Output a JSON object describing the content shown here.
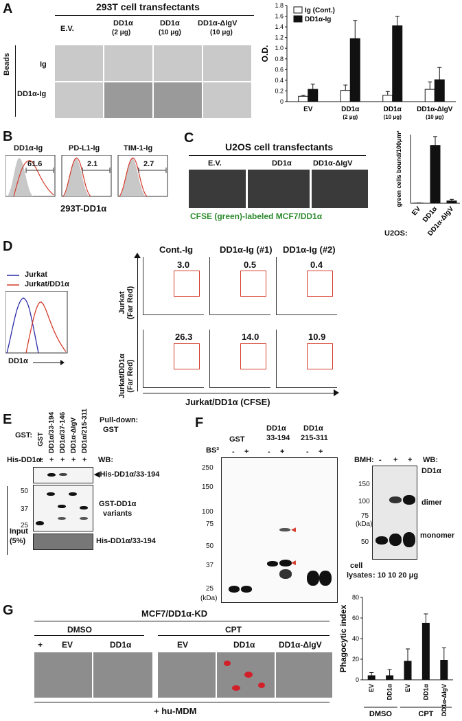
{
  "panelA": {
    "letter": "A",
    "title": "293T cell transfectants",
    "cols": [
      "E.V.",
      "DD1α",
      "DD1α",
      "DD1α-ΔIgV"
    ],
    "cols_sub": [
      "",
      "(2 μg)",
      "(10 μg)",
      "(10 μg)"
    ],
    "rows_group": "Beads",
    "rows": [
      "Ig",
      "DD1α-Ig"
    ]
  },
  "panelB": {
    "letter": "B",
    "plots": [
      {
        "title": "DD1α-Ig",
        "value": "61.6"
      },
      {
        "title": "PD-L1-Ig",
        "value": "2.1"
      },
      {
        "title": "TIM-1-Ig",
        "value": "2.7"
      }
    ],
    "xlabel": "293T-DD1α"
  },
  "panelC": {
    "letter": "C",
    "title": "U2OS cell transfectants",
    "cols": [
      "E.V.",
      "DD1α",
      "DD1α-ΔIgV"
    ],
    "caption": "CFSE (green)-labeled MCF7/DD1α",
    "row_label": "U2OS:"
  },
  "panelD": {
    "letter": "D",
    "legend": [
      "Jurkat",
      "Jurkat/DD1α"
    ],
    "hist_xlabel": "DD1α",
    "cols": [
      "Cont.-Ig",
      "DD1α-Ig (#1)",
      "DD1α-Ig (#2)"
    ],
    "row1_label": [
      "Jurkat",
      "(Far Red)"
    ],
    "row2_label": [
      "Jurkat/DD1α",
      "(Far Red)"
    ],
    "row1_values": [
      "3.0",
      "0.5",
      "0.4"
    ],
    "row2_values": [
      "26.3",
      "14.0",
      "10.9"
    ],
    "xlabel": "Jurkat/DD1α (CFSE)"
  },
  "panelE": {
    "letter": "E",
    "gst_label": "GST:",
    "lanes": [
      "GST",
      "DD1α/33-194",
      "DD1α/37-146",
      "DD1α-ΔIgV",
      "DD1α/215-311"
    ],
    "his_label": "His-DD1α:",
    "his_signs": [
      "+",
      "+",
      "+",
      "+",
      "+"
    ],
    "pulldown": [
      "Pull-down:",
      "GST"
    ],
    "wb": "WB:",
    "band_label": "◀His-DD1α/33-194",
    "input_label": [
      "Input",
      "(5%)"
    ],
    "mw": [
      "50",
      "37",
      "25"
    ],
    "variants_label": [
      "GST-DD1α",
      "variants"
    ],
    "bottom_label": "His-DD1α/33-194"
  },
  "panelF": {
    "letter": "F",
    "groups": [
      "GST",
      "DD1α",
      "DD1α"
    ],
    "groups_sub": [
      "",
      "33-194",
      "215-311"
    ],
    "bs3": "BS³",
    "signs": [
      "-",
      "+",
      "-",
      "+",
      "-",
      "+"
    ],
    "mw": [
      "250",
      "150",
      "100",
      "75",
      "50",
      "37",
      "25"
    ],
    "kda": "(kDa)",
    "bmh": "BMH:",
    "bmh_signs": [
      "-",
      "+",
      "+"
    ],
    "wb": "WB:",
    "wb_target": "DD1α",
    "mw2": [
      "150",
      "100",
      "75",
      "50"
    ],
    "kda2": "(kDa)",
    "dimer": "dimer",
    "monomer": "monomer",
    "cell_lysates": [
      "cell",
      "lysates"
    ],
    "lysate_amounts": ": 10   10   20 μg"
  },
  "panelG": {
    "letter": "G",
    "title": "MCF7/DD1α-KD",
    "groups": [
      "DMSO",
      "CPT"
    ],
    "cols": [
      "+",
      "EV",
      "DD1α",
      "EV",
      "DD1α",
      "DD1α-ΔIgV"
    ],
    "bottom": "+ hu-MDM"
  },
  "chart_data": [
    {
      "type": "bar",
      "ylabel": "O.D.",
      "ylim": [
        0,
        1.8
      ],
      "yticks": [
        "0",
        "0.2",
        "0.4",
        "0.6",
        "0.8",
        "1.0",
        "1.2",
        "1.4",
        "1.6",
        "1.8"
      ],
      "categories": [
        "EV",
        "DD1α",
        "DD1α",
        "DD1α-ΔIgV"
      ],
      "categories_sub": [
        "",
        "(2 μg)",
        "(10 μg)",
        "(10 μg)"
      ],
      "series": [
        {
          "name": "Ig (Cont.)",
          "values": [
            0.1,
            0.21,
            0.12,
            0.23
          ],
          "errors": [
            0.02,
            0.1,
            0.07,
            0.14
          ],
          "color": "#ffffff"
        },
        {
          "name": "DD1α-Ig",
          "values": [
            0.23,
            1.18,
            1.42,
            0.41
          ],
          "errors": [
            0.1,
            0.34,
            0.18,
            0.23
          ],
          "color": "#111111"
        }
      ],
      "legend": "top-left"
    },
    {
      "type": "bar",
      "ylabel": "green cells bound/100μm²",
      "ylim": [
        0,
        350
      ],
      "categories": [
        "EV",
        "DD1α",
        "DD1α-ΔIgV"
      ],
      "values": [
        1,
        295,
        12
      ],
      "errors": [
        1,
        45,
        8
      ],
      "color": "#111111"
    },
    {
      "type": "bar",
      "ylabel": "Phagocytic index",
      "ylim": [
        0,
        80
      ],
      "yticks": [
        "0",
        "20",
        "40",
        "60",
        "80"
      ],
      "categories": [
        "EV",
        "DD1α",
        "EV",
        "DD1α",
        "DD1α-ΔIgV"
      ],
      "groups": [
        "DMSO",
        "CPT"
      ],
      "values": [
        4,
        4,
        18,
        55,
        19
      ],
      "errors": [
        3,
        6,
        12,
        9,
        12
      ],
      "color": "#111111"
    }
  ]
}
